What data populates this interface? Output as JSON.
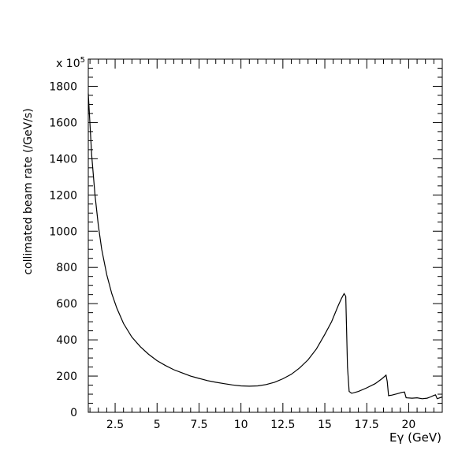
{
  "chart_data": {
    "type": "line",
    "title": "",
    "xlabel": "Eγ (GeV)",
    "ylabel": "collimated beam rate (/GeV/s)",
    "y_multiplier_label": "x 10",
    "y_multiplier_exponent": "5",
    "xlim": [
      0.9,
      22.0
    ],
    "ylim": [
      0,
      1950
    ],
    "grid": false,
    "x_ticks": [
      2.5,
      5,
      7.5,
      10,
      12.5,
      15,
      17.5,
      20
    ],
    "x_tick_labels": [
      "2.5",
      "5",
      "7.5",
      "10",
      "12.5",
      "15",
      "17.5",
      "20"
    ],
    "y_ticks": [
      0,
      200,
      400,
      600,
      800,
      1000,
      1200,
      1400,
      1600,
      1800
    ],
    "y_tick_labels": [
      "0",
      "200",
      "400",
      "600",
      "800",
      "1000",
      "1200",
      "1400",
      "1600",
      "1800"
    ],
    "series": [
      {
        "name": "",
        "color": "#000000",
        "x": [
          0.9,
          1.1,
          1.3,
          1.5,
          1.7,
          2.0,
          2.3,
          2.6,
          3.0,
          3.5,
          4.0,
          4.5,
          5.0,
          5.5,
          6.0,
          6.5,
          7.0,
          7.5,
          8.0,
          8.5,
          9.0,
          9.5,
          10.0,
          10.5,
          11.0,
          11.5,
          12.0,
          12.5,
          13.0,
          13.5,
          14.0,
          14.5,
          15.0,
          15.4,
          15.8,
          16.0,
          16.15,
          16.25,
          16.35,
          16.45,
          16.6,
          17.0,
          17.5,
          18.0,
          18.4,
          18.65,
          18.72,
          18.8,
          19.0,
          19.3,
          19.6,
          19.75,
          19.85,
          20.2,
          20.5,
          20.8,
          21.1,
          21.3,
          21.5,
          21.6,
          21.7,
          22.0
        ],
        "y": [
          1760,
          1420,
          1200,
          1030,
          900,
          760,
          655,
          575,
          490,
          415,
          362,
          320,
          285,
          258,
          235,
          217,
          200,
          187,
          175,
          166,
          158,
          151,
          146,
          144,
          146,
          153,
          166,
          185,
          210,
          245,
          290,
          350,
          430,
          500,
          590,
          630,
          655,
          640,
          250,
          115,
          105,
          115,
          135,
          158,
          185,
          205,
          170,
          92,
          95,
          102,
          110,
          112,
          80,
          78,
          80,
          75,
          78,
          85,
          93,
          96,
          75,
          85
        ]
      }
    ]
  }
}
